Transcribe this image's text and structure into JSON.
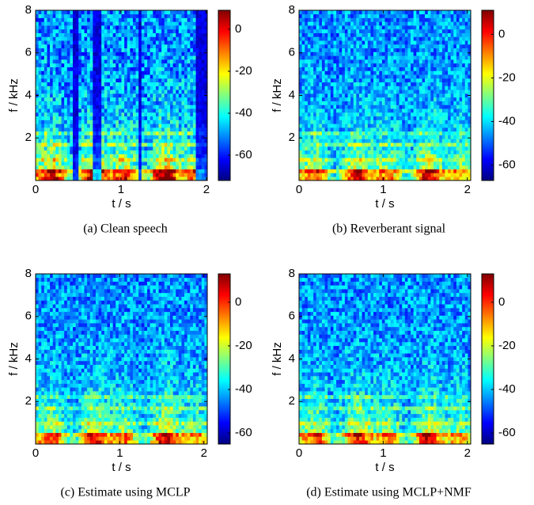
{
  "chart_data": [
    {
      "type": "heatmap",
      "caption": "(a) Clean speech",
      "xlabel": "t / s",
      "ylabel": "f / kHz",
      "xlim": [
        0,
        2.01
      ],
      "xticks": [
        0,
        1,
        2
      ],
      "ylim": [
        0,
        8
      ],
      "yticks": [
        2,
        4,
        6,
        8
      ],
      "colormap": "jet",
      "colorbar": {
        "zlim": [
          -72,
          9
        ],
        "ticks": [
          0,
          -20,
          -40,
          -60
        ]
      }
    },
    {
      "type": "heatmap",
      "caption": "(b) Reverberant signal",
      "xlabel": "t / s",
      "ylabel": "f / kHz",
      "xlim": [
        0,
        2.04
      ],
      "xticks": [
        0,
        1,
        2
      ],
      "ylim": [
        0,
        8
      ],
      "yticks": [
        2,
        4,
        6,
        8
      ],
      "colormap": "jet",
      "colorbar": {
        "zlim": [
          -67,
          11
        ],
        "ticks": [
          0,
          -20,
          -40,
          -60
        ]
      }
    },
    {
      "type": "heatmap",
      "caption": "(c) Estimate using MCLP",
      "xlabel": "t / s",
      "ylabel": "f / kHz",
      "xlim": [
        0,
        2.04
      ],
      "xticks": [
        0,
        1,
        2
      ],
      "ylim": [
        0,
        8
      ],
      "yticks": [
        2,
        4,
        6,
        8
      ],
      "colormap": "jet",
      "colorbar": {
        "zlim": [
          -65,
          13
        ],
        "ticks": [
          0,
          -20,
          -40,
          -60
        ]
      }
    },
    {
      "type": "heatmap",
      "caption": "(d) Estimate using MCLP+NMF",
      "xlabel": "t / s",
      "ylabel": "f / kHz",
      "xlim": [
        0,
        2.04
      ],
      "xticks": [
        0,
        1,
        2
      ],
      "ylim": [
        0,
        8
      ],
      "yticks": [
        2,
        4,
        6,
        8
      ],
      "colormap": "jet",
      "colorbar": {
        "zlim": [
          -65,
          13
        ],
        "ticks": [
          0,
          -20,
          -40,
          -60
        ]
      }
    }
  ]
}
